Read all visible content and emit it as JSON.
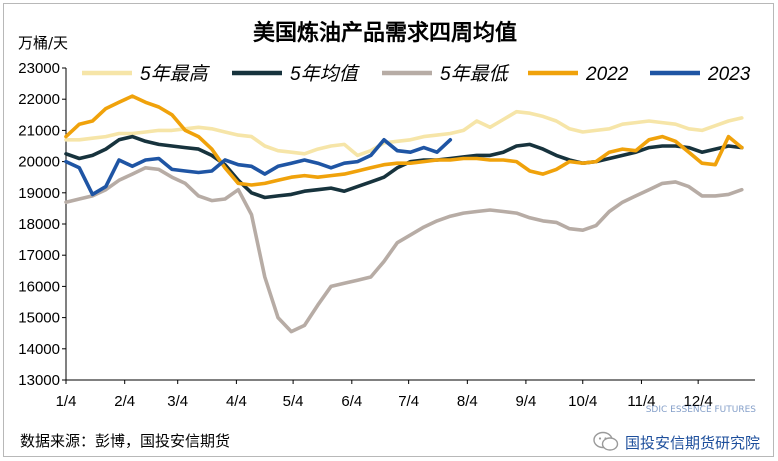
{
  "chart_data": {
    "type": "line",
    "title": "美国炼油产品需求四周均值",
    "ylabel": "万桶/天",
    "ylim": [
      13000,
      23000
    ],
    "yticks": [
      13000,
      14000,
      15000,
      16000,
      17000,
      18000,
      19000,
      20000,
      21000,
      22000,
      23000
    ],
    "xlim": [
      0,
      52
    ],
    "xticks": [
      {
        "label": "1/4",
        "week": 0
      },
      {
        "label": "2/4",
        "week": 4.43
      },
      {
        "label": "3/4",
        "week": 8.43
      },
      {
        "label": "4/4",
        "week": 12.86
      },
      {
        "label": "5/4",
        "week": 17.14
      },
      {
        "label": "6/4",
        "week": 21.57
      },
      {
        "label": "7/4",
        "week": 25.86
      },
      {
        "label": "8/4",
        "week": 30.29
      },
      {
        "label": "9/4",
        "week": 34.71
      },
      {
        "label": "10/4",
        "week": 39.0
      },
      {
        "label": "11/4",
        "week": 43.43
      },
      {
        "label": "12/4",
        "week": 47.71
      }
    ],
    "legend_position": "top",
    "series": [
      {
        "name": "5年最高",
        "color": "#f6e5a8",
        "values": [
          20700,
          20700,
          20750,
          20800,
          20900,
          20900,
          20950,
          21000,
          21000,
          21050,
          21100,
          21050,
          20950,
          20850,
          20800,
          20500,
          20350,
          20300,
          20250,
          20400,
          20500,
          20550,
          20200,
          20350,
          20600,
          20650,
          20700,
          20800,
          20850,
          20900,
          21000,
          21300,
          21100,
          21350,
          21600,
          21550,
          21450,
          21300,
          21050,
          20950,
          21000,
          21050,
          21200,
          21250,
          21300,
          21250,
          21200,
          21050,
          21000,
          21150,
          21300,
          21400
        ]
      },
      {
        "name": "5年均值",
        "color": "#17333d",
        "values": [
          20250,
          20100,
          20200,
          20400,
          20700,
          20800,
          20650,
          20550,
          20500,
          20450,
          20400,
          20200,
          19900,
          19400,
          19000,
          18850,
          18900,
          18950,
          19050,
          19100,
          19150,
          19050,
          19200,
          19350,
          19500,
          19800,
          20000,
          20050,
          20050,
          20100,
          20150,
          20200,
          20200,
          20300,
          20500,
          20550,
          20400,
          20200,
          20050,
          19950,
          20000,
          20100,
          20200,
          20300,
          20450,
          20500,
          20500,
          20450,
          20300,
          20400,
          20500,
          20450
        ]
      },
      {
        "name": "5年最低",
        "color": "#b7aca5",
        "values": [
          18700,
          18800,
          18900,
          19100,
          19400,
          19600,
          19800,
          19750,
          19500,
          19300,
          18900,
          18750,
          18800,
          19100,
          18300,
          16300,
          15000,
          14550,
          14750,
          15400,
          16000,
          16100,
          16200,
          16300,
          16800,
          17400,
          17650,
          17900,
          18100,
          18250,
          18350,
          18400,
          18450,
          18400,
          18350,
          18200,
          18100,
          18050,
          17850,
          17800,
          17950,
          18400,
          18700,
          18900,
          19100,
          19300,
          19350,
          19200,
          18900,
          18900,
          18950,
          19100
        ]
      },
      {
        "name": "2022",
        "color": "#f0a20b",
        "values": [
          20800,
          21200,
          21300,
          21700,
          21900,
          22100,
          21900,
          21750,
          21500,
          21000,
          20800,
          20400,
          19800,
          19300,
          19250,
          19300,
          19400,
          19500,
          19550,
          19500,
          19550,
          19600,
          19700,
          19800,
          19900,
          19950,
          19950,
          20000,
          20050,
          20050,
          20100,
          20100,
          20050,
          20050,
          20000,
          19700,
          19600,
          19750,
          20000,
          19950,
          20000,
          20300,
          20400,
          20350,
          20700,
          20800,
          20650,
          20300,
          19950,
          19900,
          20800,
          20450
        ]
      },
      {
        "name": "2023",
        "color": "#1f55a4",
        "values": [
          20000,
          19800,
          18950,
          19200,
          20050,
          19850,
          20050,
          20100,
          19750,
          19700,
          19650,
          19700,
          20050,
          19900,
          19850,
          19600,
          19850,
          19950,
          20050,
          19950,
          19800,
          19950,
          20000,
          20200,
          20700,
          20350,
          20300,
          20450,
          20300,
          20700
        ]
      }
    ]
  },
  "source_text": "数据来源：彭博，国投安信期货",
  "watermark": {
    "text": "国投安信期货研究院",
    "icon": "wechat-icon"
  },
  "logo": {
    "text": "SDIC ESSENCE FUTURES"
  }
}
